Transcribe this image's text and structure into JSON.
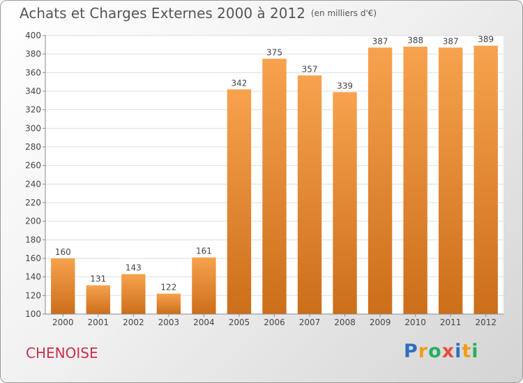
{
  "chart_data": {
    "type": "bar",
    "title": "Achats et Charges Externes 2000 à 2012",
    "subtitle": "(en milliers d'€)",
    "categories": [
      "2000",
      "2001",
      "2002",
      "2003",
      "2004",
      "2005",
      "2006",
      "2007",
      "2008",
      "2009",
      "2010",
      "2011",
      "2012"
    ],
    "values": [
      160,
      131,
      143,
      122,
      161,
      342,
      375,
      357,
      339,
      387,
      388,
      387,
      389
    ],
    "ylim": [
      100,
      400
    ],
    "yticks": [
      100,
      120,
      140,
      160,
      180,
      200,
      220,
      240,
      260,
      280,
      300,
      320,
      340,
      360,
      380,
      400
    ],
    "grid": true,
    "xlabel": "",
    "ylabel": ""
  },
  "place_name": "CHENOISE",
  "logo": {
    "letters": [
      "P",
      "r",
      "o",
      "x",
      "i",
      "t",
      "i"
    ],
    "colors": [
      "#2c6fc1",
      "#f39c12",
      "#27ae60",
      "#e74c3c",
      "#2c6fc1",
      "#f39c12",
      "#27ae60"
    ]
  },
  "colors": {
    "bar_top": "#f7a24e",
    "bar_bottom": "#cc6e1a",
    "grid": "#dddddd",
    "axis": "#888888",
    "text": "#444444",
    "place": "#cc2e4b"
  }
}
